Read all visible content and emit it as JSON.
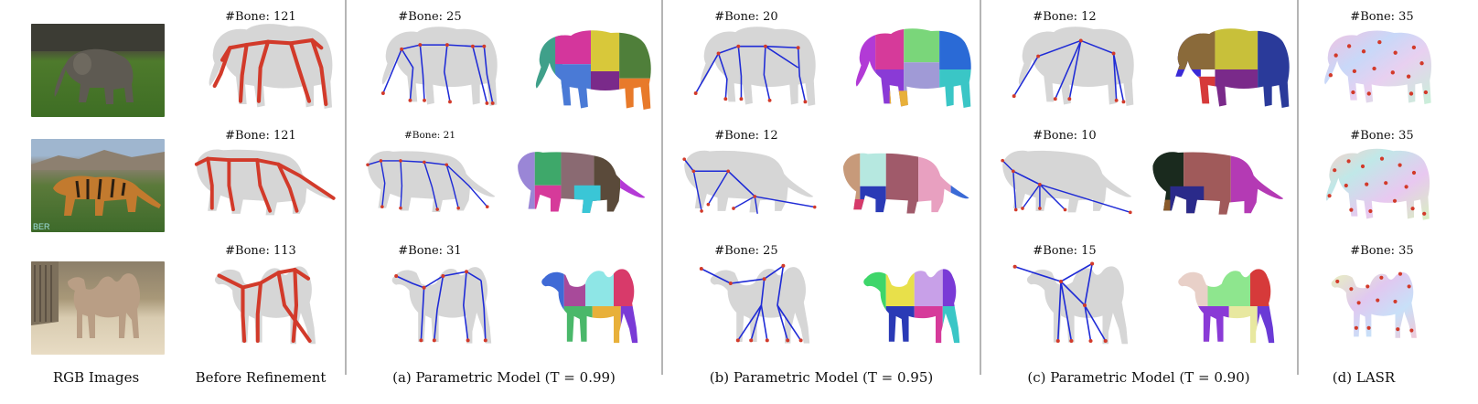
{
  "captions": {
    "rgb": "RGB Images",
    "before": "Before Refinement",
    "a": "(a) Parametric Model  (T = 0.99)",
    "b": "(b) Parametric Model  (T = 0.95)",
    "c": "(c) Parametric Model  (T = 0.90)",
    "d": "(d) LASR"
  },
  "bone_labels": {
    "before": [
      "#Bone: 121",
      "#Bone: 121",
      "#Bone: 113"
    ],
    "a": [
      "#Bone: 25",
      "#Bone: 21",
      "#Bone: 31"
    ],
    "b": [
      "#Bone: 20",
      "#Bone: 12",
      "#Bone: 25"
    ],
    "c": [
      "#Bone: 12",
      "#Bone: 10",
      "#Bone: 15"
    ],
    "d": [
      "#Bone: 35",
      "#Bone: 35",
      "#Bone: 35"
    ]
  },
  "photo_watermark": "BER",
  "colors": {
    "mesh_gray": "#d6d6d6",
    "skeleton_blue": "#1f2bd6",
    "joint_red": "#d23a2a",
    "divider": "#b5b5b5"
  }
}
